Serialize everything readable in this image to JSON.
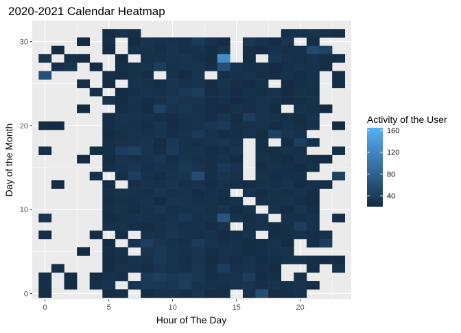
{
  "chart_data": {
    "type": "heatmap",
    "title": "2020-2021 Calendar Heatmap",
    "xlabel": "Hour of The Day",
    "ylabel": "Day of the Month",
    "xlim": [
      -1,
      24
    ],
    "ylim": [
      -0.7,
      32.5
    ],
    "x_ticks": [
      0,
      5,
      10,
      15,
      20
    ],
    "y_ticks": [
      0,
      10,
      20,
      30
    ],
    "grid": true,
    "legend": {
      "title": "Activity of the User",
      "position": "right",
      "scale_min": 20,
      "scale_max": 165,
      "ticks": [
        40,
        80,
        120,
        160
      ],
      "low_color": "#132B43",
      "high_color": "#56B1F7"
    },
    "panel_color": "#EBEBEB",
    "grid_color": "#FFFFFF",
    "cell_columns": "hour (0-23); rows listed from day 31 down to day 1; 0 = no activity recorded",
    "rows": [
      {
        "day": 31,
        "values": [
          0,
          0,
          0,
          0,
          0,
          22,
          28,
          24,
          0,
          0,
          0,
          0,
          0,
          0,
          0,
          0,
          0,
          0,
          0,
          24,
          26,
          30,
          26,
          24
        ]
      },
      {
        "day": 30,
        "values": [
          0,
          0,
          0,
          22,
          0,
          24,
          0,
          22,
          30,
          26,
          28,
          25,
          36,
          28,
          22,
          0,
          34,
          28,
          22,
          30,
          0,
          24,
          0,
          0
        ]
      },
      {
        "day": 29,
        "values": [
          0,
          22,
          0,
          0,
          0,
          22,
          0,
          26,
          28,
          24,
          30,
          25,
          28,
          22,
          30,
          0,
          24,
          22,
          28,
          24,
          26,
          52,
          46,
          0
        ]
      },
      {
        "day": 28,
        "values": [
          30,
          0,
          24,
          22,
          0,
          0,
          22,
          0,
          24,
          26,
          28,
          30,
          24,
          22,
          125,
          0,
          22,
          0,
          34,
          26,
          24,
          28,
          24,
          24
        ]
      },
      {
        "day": 27,
        "values": [
          0,
          24,
          30,
          0,
          22,
          0,
          24,
          26,
          28,
          40,
          26,
          28,
          30,
          24,
          60,
          28,
          24,
          26,
          22,
          24,
          28,
          26,
          22,
          0
        ]
      },
      {
        "day": 26,
        "values": [
          62,
          0,
          0,
          0,
          0,
          24,
          22,
          26,
          24,
          0,
          28,
          22,
          30,
          0,
          24,
          26,
          28,
          24,
          22,
          26,
          24,
          28,
          0,
          24
        ]
      },
      {
        "day": 25,
        "values": [
          0,
          0,
          0,
          24,
          0,
          22,
          0,
          28,
          26,
          24,
          30,
          26,
          28,
          22,
          30,
          24,
          22,
          26,
          0,
          22,
          24,
          26,
          0,
          24
        ]
      },
      {
        "day": 24,
        "values": [
          0,
          0,
          0,
          0,
          24,
          0,
          22,
          24,
          28,
          26,
          30,
          36,
          40,
          24,
          28,
          22,
          26,
          24,
          28,
          22,
          26,
          24,
          0,
          0
        ]
      },
      {
        "day": 23,
        "values": [
          0,
          0,
          0,
          0,
          0,
          30,
          22,
          28,
          24,
          26,
          32,
          28,
          30,
          24,
          26,
          22,
          24,
          28,
          26,
          22,
          24,
          26,
          0,
          0
        ]
      },
      {
        "day": 22,
        "values": [
          0,
          0,
          0,
          22,
          0,
          0,
          24,
          26,
          22,
          44,
          28,
          34,
          26,
          24,
          22,
          26,
          24,
          28,
          22,
          0,
          26,
          24,
          22,
          0
        ]
      },
      {
        "day": 21,
        "values": [
          0,
          0,
          0,
          0,
          0,
          24,
          30,
          28,
          26,
          24,
          22,
          26,
          28,
          24,
          30,
          22,
          40,
          28,
          26,
          24,
          22,
          28,
          0,
          0
        ]
      },
      {
        "day": 20,
        "values": [
          22,
          22,
          0,
          0,
          0,
          24,
          28,
          26,
          24,
          30,
          22,
          26,
          28,
          32,
          36,
          24,
          26,
          28,
          22,
          26,
          24,
          28,
          0,
          22
        ]
      },
      {
        "day": 19,
        "values": [
          0,
          0,
          0,
          0,
          0,
          22,
          24,
          28,
          26,
          30,
          24,
          28,
          36,
          26,
          22,
          24,
          28,
          22,
          44,
          30,
          26,
          0,
          0,
          0
        ]
      },
      {
        "day": 18,
        "values": [
          0,
          0,
          0,
          0,
          0,
          24,
          26,
          28,
          30,
          22,
          34,
          26,
          24,
          28,
          30,
          26,
          0,
          24,
          0,
          22,
          40,
          26,
          0,
          0
        ]
      },
      {
        "day": 17,
        "values": [
          24,
          0,
          0,
          0,
          22,
          24,
          40,
          44,
          30,
          24,
          36,
          26,
          28,
          22,
          24,
          30,
          0,
          24,
          22,
          28,
          24,
          0,
          0,
          24
        ]
      },
      {
        "day": 16,
        "values": [
          0,
          0,
          0,
          22,
          0,
          22,
          30,
          26,
          28,
          32,
          24,
          30,
          26,
          24,
          28,
          22,
          0,
          26,
          24,
          22,
          28,
          24,
          22,
          0
        ]
      },
      {
        "day": 15,
        "values": [
          0,
          0,
          0,
          0,
          0,
          24,
          28,
          32,
          24,
          28,
          26,
          34,
          30,
          24,
          36,
          28,
          0,
          22,
          26,
          24,
          22,
          26,
          0,
          0
        ]
      },
      {
        "day": 14,
        "values": [
          0,
          0,
          0,
          0,
          24,
          0,
          24,
          40,
          26,
          22,
          28,
          30,
          56,
          24,
          30,
          26,
          0,
          28,
          22,
          24,
          26,
          0,
          0,
          44
        ]
      },
      {
        "day": 13,
        "values": [
          0,
          22,
          0,
          0,
          0,
          22,
          0,
          24,
          28,
          26,
          30,
          24,
          28,
          22,
          26,
          24,
          22,
          26,
          24,
          28,
          22,
          26,
          24,
          0
        ]
      },
      {
        "day": 12,
        "values": [
          0,
          0,
          0,
          0,
          0,
          24,
          28,
          26,
          24,
          30,
          26,
          28,
          22,
          26,
          24,
          0,
          28,
          22,
          26,
          24,
          28,
          22,
          0,
          0
        ]
      },
      {
        "day": 11,
        "values": [
          0,
          0,
          0,
          0,
          0,
          22,
          26,
          24,
          28,
          22,
          30,
          28,
          24,
          26,
          22,
          28,
          0,
          24,
          26,
          28,
          24,
          22,
          0,
          0
        ]
      },
      {
        "day": 10,
        "values": [
          0,
          0,
          0,
          0,
          0,
          24,
          28,
          22,
          26,
          30,
          24,
          26,
          28,
          24,
          30,
          22,
          26,
          0,
          28,
          22,
          30,
          24,
          0,
          0
        ]
      },
      {
        "day": 9,
        "values": [
          30,
          0,
          0,
          0,
          0,
          22,
          24,
          28,
          26,
          24,
          28,
          34,
          26,
          28,
          66,
          26,
          24,
          28,
          0,
          26,
          24,
          28,
          0,
          24
        ]
      },
      {
        "day": 8,
        "values": [
          0,
          0,
          0,
          0,
          0,
          26,
          28,
          24,
          22,
          26,
          30,
          24,
          28,
          22,
          26,
          0,
          24,
          28,
          22,
          24,
          40,
          26,
          0,
          0
        ]
      },
      {
        "day": 7,
        "values": [
          24,
          0,
          0,
          0,
          22,
          0,
          24,
          0,
          28,
          26,
          30,
          28,
          24,
          26,
          22,
          24,
          28,
          0,
          22,
          24,
          28,
          24,
          26,
          0
        ]
      },
      {
        "day": 6,
        "values": [
          0,
          0,
          0,
          0,
          0,
          22,
          0,
          28,
          40,
          30,
          26,
          24,
          36,
          28,
          24,
          26,
          22,
          24,
          28,
          22,
          0,
          24,
          40,
          0
        ]
      },
      {
        "day": 5,
        "values": [
          0,
          0,
          0,
          22,
          0,
          24,
          26,
          0,
          30,
          34,
          28,
          26,
          30,
          24,
          28,
          26,
          22,
          24,
          26,
          28,
          0,
          0,
          0,
          0
        ]
      },
      {
        "day": 4,
        "values": [
          0,
          0,
          0,
          0,
          0,
          22,
          24,
          28,
          26,
          34,
          28,
          24,
          30,
          22,
          26,
          24,
          28,
          22,
          24,
          26,
          28,
          24,
          22,
          22
        ]
      },
      {
        "day": 3,
        "values": [
          0,
          24,
          0,
          0,
          0,
          22,
          28,
          26,
          24,
          30,
          28,
          26,
          32,
          24,
          40,
          26,
          28,
          24,
          22,
          0,
          0,
          24,
          0,
          28
        ]
      },
      {
        "day": 2,
        "values": [
          24,
          0,
          22,
          0,
          22,
          26,
          24,
          0,
          36,
          40,
          34,
          38,
          32,
          24,
          26,
          28,
          40,
          22,
          24,
          0,
          26,
          0,
          0,
          0
        ]
      },
      {
        "day": 1,
        "values": [
          24,
          0,
          22,
          0,
          24,
          28,
          0,
          30,
          36,
          34,
          32,
          40,
          28,
          26,
          24,
          28,
          30,
          24,
          28,
          26,
          28,
          22,
          0,
          0
        ]
      },
      {
        "day": 0,
        "values": [
          24,
          0,
          0,
          0,
          0,
          22,
          24,
          0,
          22,
          26,
          28,
          24,
          30,
          22,
          24,
          0,
          28,
          58,
          22,
          24,
          26,
          0,
          0,
          0
        ]
      }
    ]
  }
}
